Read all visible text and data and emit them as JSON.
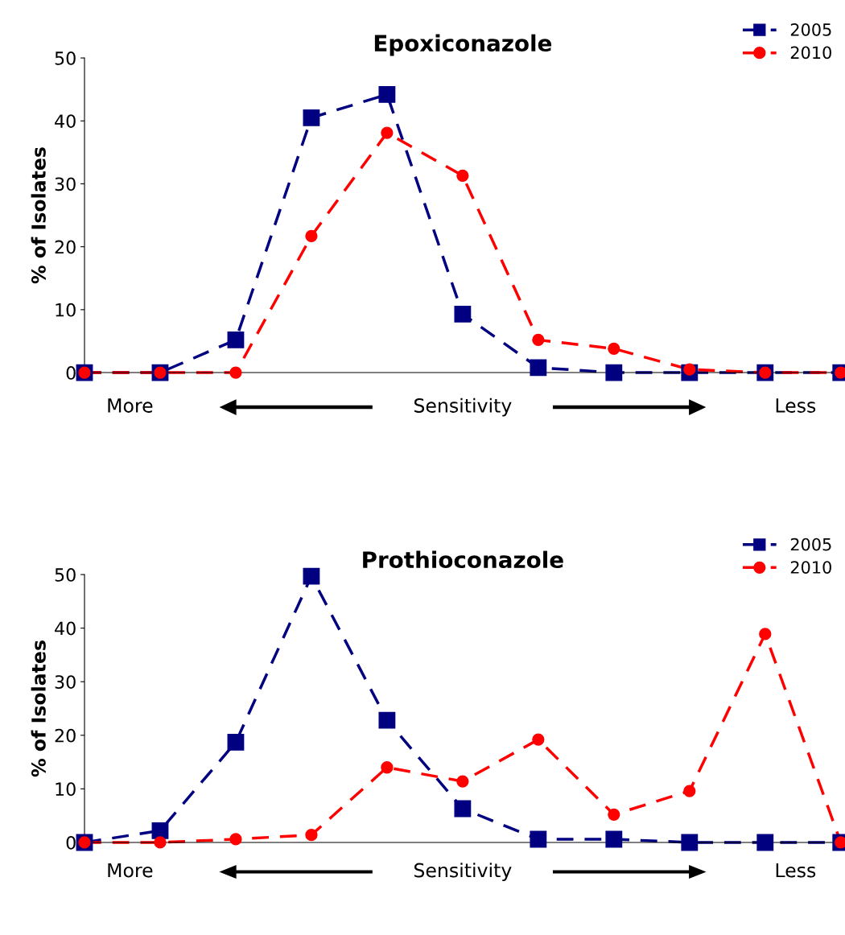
{
  "chart_data": [
    {
      "type": "line",
      "title": "Epoxiconazole",
      "ylabel": "% of Isolates",
      "categories": [
        null,
        null,
        null,
        null,
        null,
        null,
        null,
        null,
        null,
        null,
        null
      ],
      "ylim": [
        0,
        50
      ],
      "yticks": [
        0,
        10,
        20,
        30,
        40,
        50
      ],
      "tick_labels": "y",
      "legend": "top right",
      "line_style": "dashed",
      "series": [
        {
          "name": "2005",
          "color": "#000080",
          "marker": "square",
          "values": [
            0,
            0,
            5.2,
            40.5,
            44.2,
            9.3,
            0.8,
            0,
            0,
            0,
            0
          ]
        },
        {
          "name": "2010",
          "color": "#ff0000",
          "marker": "circle",
          "values": [
            0,
            0,
            0,
            21.7,
            38.1,
            31.3,
            5.2,
            3.8,
            0.5,
            0,
            0
          ]
        }
      ],
      "annotations": [
        "More",
        "Sensitivity",
        "Less"
      ]
    },
    {
      "type": "line",
      "title": "Prothioconazole",
      "ylabel": "% of Isolates",
      "categories": [
        null,
        null,
        null,
        null,
        null,
        null,
        null,
        null,
        null,
        null,
        null
      ],
      "ylim": [
        0,
        50
      ],
      "yticks": [
        0,
        10,
        20,
        30,
        40,
        50
      ],
      "tick_labels": "y",
      "legend": "top right",
      "line_style": "dashed",
      "series": [
        {
          "name": "2005",
          "color": "#000080",
          "marker": "square",
          "values": [
            0,
            2.2,
            18.7,
            49.7,
            22.8,
            6.3,
            0.6,
            0.6,
            0,
            0,
            0
          ]
        },
        {
          "name": "2010",
          "color": "#ff0000",
          "marker": "circle",
          "values": [
            0,
            0,
            0.6,
            1.4,
            14,
            11.4,
            19.2,
            5.2,
            9.6,
            38.9,
            0
          ]
        }
      ],
      "annotations": [
        "More",
        "Sensitivity",
        "Less"
      ]
    }
  ]
}
